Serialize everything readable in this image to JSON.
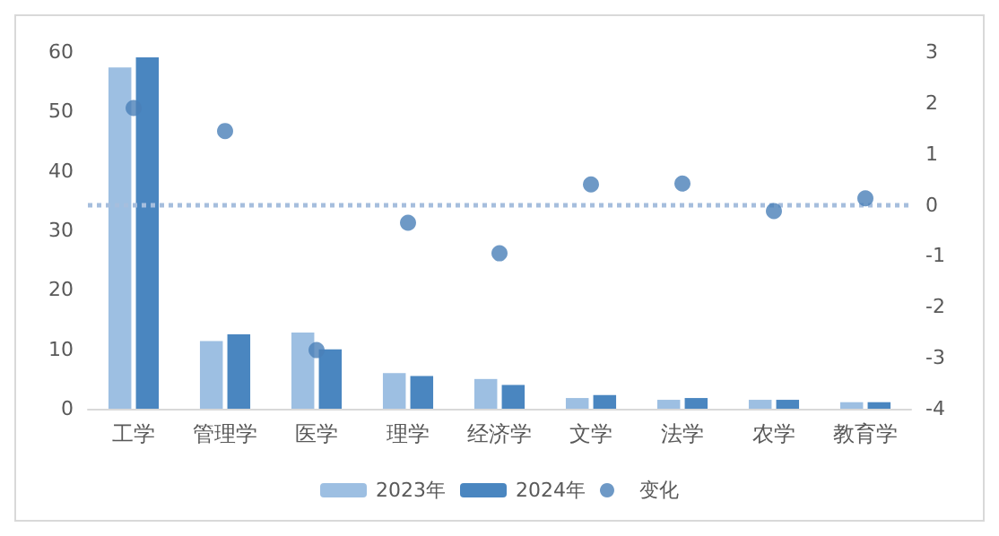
{
  "chart_data": {
    "type": "bar",
    "categories": [
      "工学",
      "管理学",
      "医学",
      "理学",
      "经济学",
      "文学",
      "法学",
      "农学",
      "教育学"
    ],
    "series": [
      {
        "name": "2023年",
        "color": "#9dbfe2",
        "values": [
          57.4,
          11.4,
          12.8,
          6,
          5,
          1.8,
          1.5,
          1.5,
          1.1
        ]
      },
      {
        "name": "2024年",
        "color": "#4a86c0",
        "values": [
          59.1,
          12.5,
          10,
          5.5,
          4,
          2.3,
          1.8,
          1.5,
          1.1
        ]
      },
      {
        "name": "变化",
        "type": "scatter",
        "axis": "y2",
        "color": "#4a7fb8",
        "values": [
          1.9,
          1.45,
          -2.85,
          -0.35,
          -0.95,
          0.4,
          0.42,
          -0.12,
          0.13
        ]
      }
    ],
    "ylim": [
      0,
      60
    ],
    "yticks": [
      0,
      10,
      20,
      30,
      40,
      50,
      60
    ],
    "y2lim": [
      -4,
      3
    ],
    "y2ticks": [
      -4,
      -3,
      -2,
      -1,
      0,
      1,
      2,
      3
    ],
    "ref_lines": [
      {
        "axis": "y2",
        "value": 0,
        "color": "#a6bedd",
        "line_style": "dotted"
      }
    ],
    "grid": false,
    "legend": "bottom",
    "marker": "circle"
  }
}
